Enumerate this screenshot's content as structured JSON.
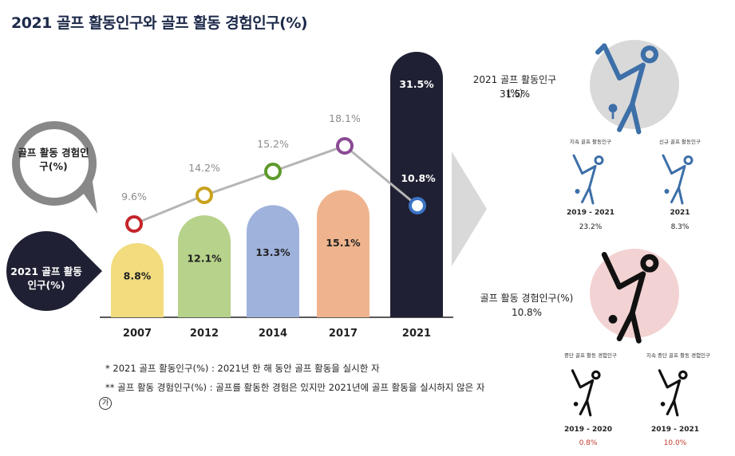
{
  "title": "2021 골프 활동인구와 골프 활동 경험인구(%)",
  "labels": {
    "experience": "골프 활동 경험인구(%)",
    "activity": "2021 골프 활동인구(%)"
  },
  "notes": {
    "note1": "* 2021 골프 활동인구(%) : 2021년 한 해 동안 골프 활동을 실시한 자",
    "note2": "** 골프 활동 경험인구(%) : 골프를 활동한 경험은 있지만 2021년에 골프 활동을 실시하지 않은 자",
    "source_mark": "가"
  },
  "chart_data": {
    "type": "bar",
    "categories": [
      "2007",
      "2012",
      "2014",
      "2017",
      "2021"
    ],
    "series": [
      {
        "name": "2021 골프 활동인구(%)",
        "values": [
          8.8,
          12.1,
          13.3,
          15.1,
          31.5
        ],
        "type": "bar"
      },
      {
        "name": "골프 활동 경험인구(%)",
        "values": [
          9.6,
          14.2,
          15.2,
          18.1,
          10.8
        ],
        "type": "line"
      }
    ],
    "bar_colors": [
      "#f2dc7e",
      "#b7d28a",
      "#9fb2dc",
      "#efb48d",
      "#1f2033"
    ],
    "marker_colors": [
      "#c4252b",
      "#c9a21e",
      "#5e9a2a",
      "#8a4a94",
      "#3b74c4"
    ],
    "line_color": "#b5b5b5",
    "ylim": [
      0,
      35
    ],
    "grid": false
  },
  "side": {
    "active": {
      "heading": "2021 골프 활동인구(%)",
      "value": "31.5%",
      "left_caption": "지속 골프 활동인구",
      "left_year": "2019 - 2021",
      "left_pct": "23.2%",
      "right_caption": "신규 골프 활동인구",
      "right_year": "2021",
      "right_pct": "8.3%"
    },
    "experience": {
      "heading": "골프 활동 경험인구(%)",
      "value": "10.8%",
      "left_caption": "중단 골프 활동 경험인구",
      "left_year": "2019 - 2020",
      "left_pct": "0.8%",
      "right_caption": "지속 중단 골프 활동 경험인구",
      "right_year": "2019 - 2021",
      "right_pct": "10.0%"
    }
  },
  "colors": {
    "title": "#1e2a4a",
    "golfer_blue": "#3d6fa8",
    "golfer_dark": "#111111",
    "pct_red": "#c0392b",
    "circle_gray": "#d9d9d9",
    "circle_pink": "#f2d2d2"
  }
}
